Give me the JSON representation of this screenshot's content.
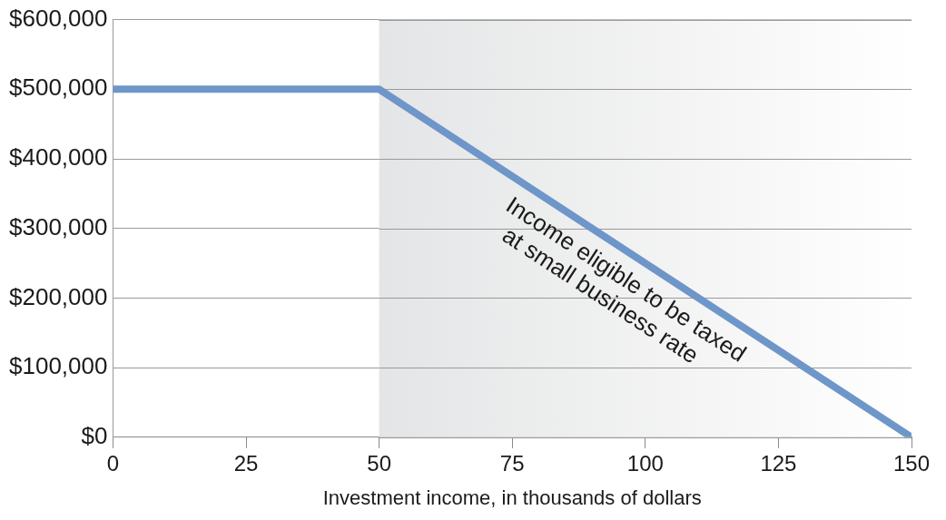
{
  "chart_data": {
    "type": "line",
    "x": [
      0,
      50,
      150
    ],
    "values": [
      500000,
      500000,
      0
    ],
    "color": "#6f96c9",
    "x_label": "Investment income, in thousands of dollars",
    "annotation": [
      "Income eligible to be taxed",
      "at small business rate"
    ],
    "shaded_x": [
      50,
      150
    ],
    "xlim": [
      0,
      150
    ],
    "xticks": [
      0,
      25,
      50,
      75,
      100,
      125,
      150
    ],
    "ylim": [
      0,
      600000
    ],
    "yticks": [
      {
        "value": 0,
        "label": "$0"
      },
      {
        "value": 100000,
        "label": "$100,000"
      },
      {
        "value": 200000,
        "label": "$200,000"
      },
      {
        "value": 300000,
        "label": "$300,000"
      },
      {
        "value": 400000,
        "label": "$400,000"
      },
      {
        "value": 500000,
        "label": "$500,000"
      },
      {
        "value": 600000,
        "label": "$600,000"
      }
    ],
    "grid": true
  }
}
